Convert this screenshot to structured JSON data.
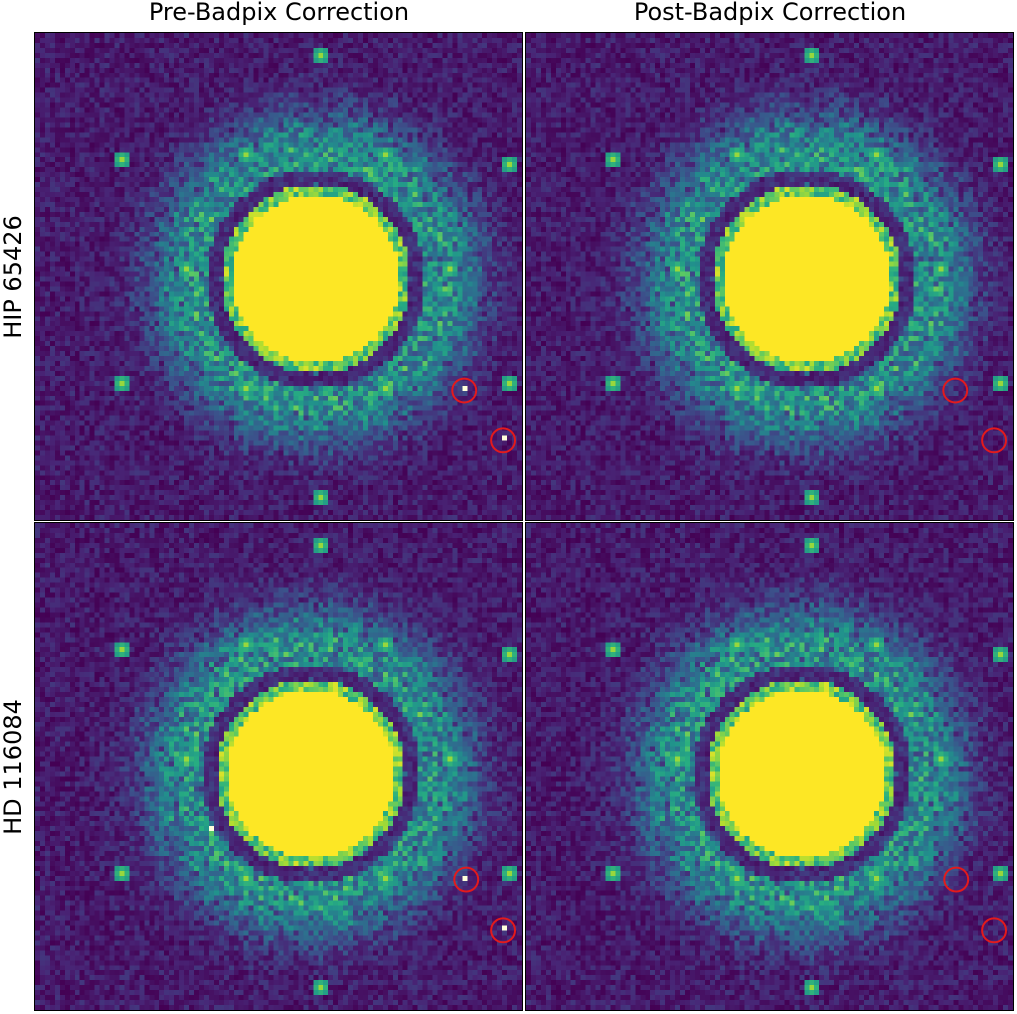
{
  "columns": [
    "Pre-Badpix Correction",
    "Post-Badpix Correction"
  ],
  "rows": [
    "HIP 65426",
    "HD 116084"
  ],
  "colormap": "viridis",
  "colors": {
    "background": "#440154",
    "saturated": "#fde725",
    "marker": "#e31a1c"
  }
}
